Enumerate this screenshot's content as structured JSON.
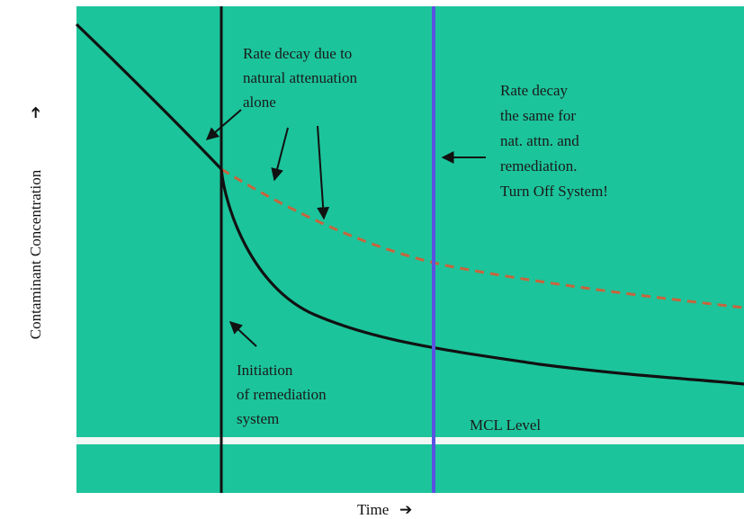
{
  "colors": {
    "background": "#1cc49b",
    "solid_curve": "#111111",
    "dashed_curve": "#c8643c",
    "remediation_line": "#111111",
    "turn_off_line": "#5a52e0",
    "mcl_line": "#f2f6f4"
  },
  "annotations": {
    "natural_attenuation": [
      "Rate decay due to",
      "natural attenuation",
      "alone"
    ],
    "same_rate": [
      "Rate decay",
      "the same for",
      "nat. attn. and",
      "remediation.",
      "Turn Off System!"
    ],
    "initiation": [
      "Initiation",
      "of remediation",
      "system"
    ],
    "mcl": "MCL Level"
  },
  "axes": {
    "y_label": "Contaminant Concentration",
    "x_label": "Time"
  }
}
